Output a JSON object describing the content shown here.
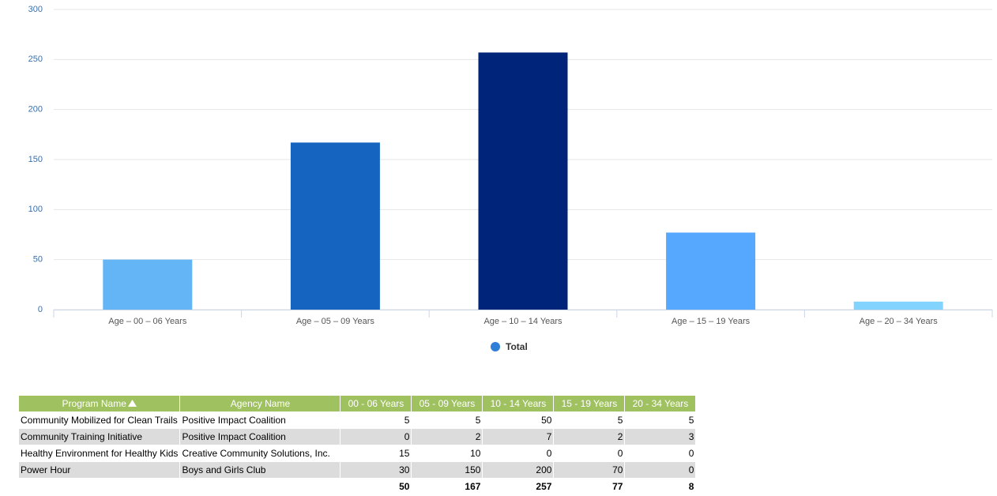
{
  "chart_data": {
    "type": "bar",
    "categories": [
      "Age – 00 – 06 Years",
      "Age – 05 – 09 Years",
      "Age – 10 – 14 Years",
      "Age – 15 – 19 Years",
      "Age – 20 – 34 Years"
    ],
    "series": [
      {
        "name": "Total",
        "color": "#2f7ed8",
        "point_colors": [
          "#64b5f6",
          "#1565c0",
          "#002479",
          "#56a8ff",
          "#82d4ff"
        ],
        "values": [
          50,
          167,
          257,
          77,
          8
        ]
      }
    ],
    "ylim": [
      0,
      300
    ],
    "yticks": [
      0,
      50,
      100,
      150,
      200,
      250,
      300
    ],
    "grid": true,
    "legend": "bottom"
  },
  "table": {
    "columns": [
      "Program Name",
      "Agency Name",
      "00 - 06 Years",
      "05 - 09 Years",
      "10 - 14 Years",
      "15 - 19 Years",
      "20 - 34 Years"
    ],
    "rows": [
      [
        "Community Mobilized for Clean Trails",
        "Positive Impact Coalition",
        5,
        5,
        50,
        5,
        5
      ],
      [
        "Community Training Initiative",
        "Positive Impact Coalition",
        0,
        2,
        7,
        2,
        3
      ],
      [
        "Healthy Environment for Healthy Kids",
        "Creative Community Solutions, Inc.",
        15,
        10,
        0,
        0,
        0
      ],
      [
        "Power Hour",
        "Boys and Girls Club",
        30,
        150,
        200,
        70,
        0
      ]
    ]
  }
}
